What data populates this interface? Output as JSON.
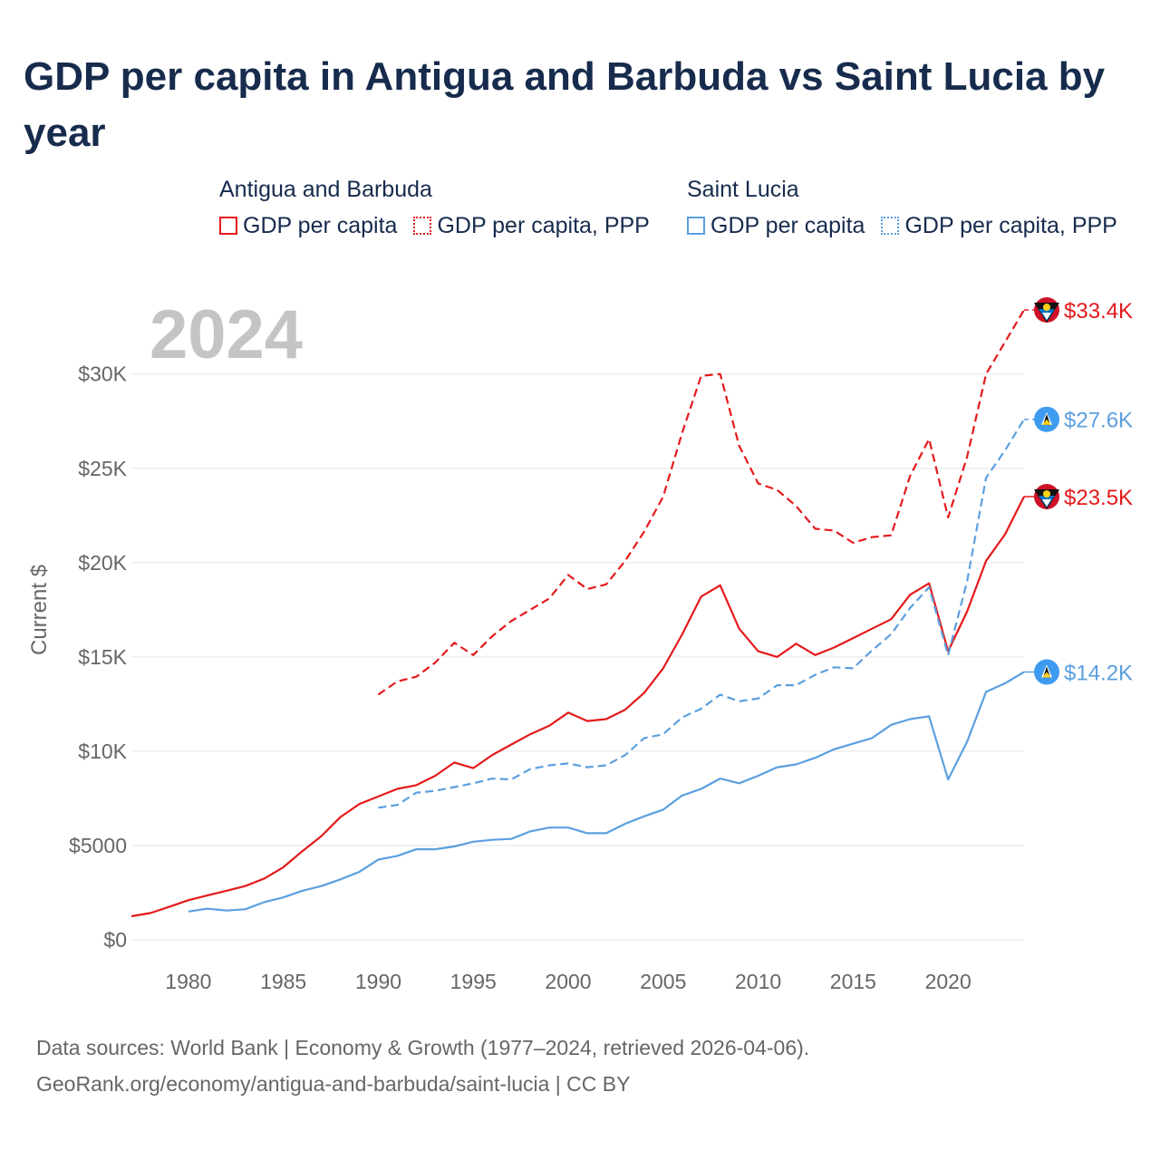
{
  "title": "GDP per capita in Antigua and Barbuda vs Saint Lucia by year",
  "legend": {
    "groups": [
      {
        "name": "Antigua and Barbuda",
        "items": [
          "GDP per capita",
          "GDP per capita, PPP"
        ]
      },
      {
        "name": "Saint Lucia",
        "items": [
          "GDP per capita",
          "GDP per capita, PPP"
        ]
      }
    ]
  },
  "source": {
    "line1": "Data sources: World Bank | Economy & Growth (1977–2024, retrieved 2026-04-06).",
    "line2": "GeoRank.org/economy/antigua-and-barbuda/saint-lucia | CC BY"
  },
  "colors": {
    "antigua": "#e41a1c",
    "saint_lucia": "#5b9fdf",
    "title": "#172b4d",
    "year_label": "#c4c4c4",
    "grid": "#e6e6e6",
    "axis_text": "#666666"
  },
  "icons": [
    "antigua-flag-icon",
    "saint-lucia-flag-icon"
  ],
  "chart_data": {
    "type": "line",
    "year_label": "2024",
    "ylabel": "Current $",
    "xlim": [
      1977,
      2024
    ],
    "ylim": [
      0,
      33400
    ],
    "xticks": [
      1980,
      1985,
      1990,
      1995,
      2000,
      2005,
      2010,
      2015,
      2020
    ],
    "xtick_labels": [
      "1980",
      "1985",
      "1990",
      "1995",
      "2000",
      "2005",
      "2010",
      "2015",
      "2020"
    ],
    "yticks": [
      0,
      5000,
      10000,
      15000,
      20000,
      25000,
      30000
    ],
    "ytick_labels": [
      "$0",
      "$5000",
      "$10K",
      "$15K",
      "$20K",
      "$25K",
      "$30K"
    ],
    "series": [
      {
        "name": "Antigua and Barbuda — GDP per capita",
        "country": "Antigua and Barbuda",
        "color": "#e41a1c",
        "dash": false,
        "end_label": "$23.5K",
        "flag": "antigua",
        "x": [
          1977,
          1978,
          1979,
          1980,
          1981,
          1982,
          1983,
          1984,
          1985,
          1986,
          1987,
          1988,
          1989,
          1990,
          1991,
          1992,
          1993,
          1994,
          1995,
          1996,
          1997,
          1998,
          1999,
          2000,
          2001,
          2002,
          2003,
          2004,
          2005,
          2006,
          2007,
          2008,
          2009,
          2010,
          2011,
          2012,
          2013,
          2014,
          2015,
          2016,
          2017,
          2018,
          2019,
          2020,
          2021,
          2022,
          2023,
          2024
        ],
        "y": [
          1250,
          1420,
          1750,
          2100,
          2350,
          2600,
          2850,
          3250,
          3850,
          4700,
          5500,
          6500,
          7200,
          7600,
          8000,
          8200,
          8700,
          9400,
          9100,
          9800,
          10350,
          10900,
          11350,
          12050,
          11600,
          11700,
          12200,
          13100,
          14400,
          16200,
          18200,
          18800,
          16500,
          15300,
          15000,
          15700,
          15100,
          15500,
          16000,
          16500,
          17000,
          18300,
          18900,
          15300,
          17400,
          20100,
          21500,
          23500
        ]
      },
      {
        "name": "Antigua and Barbuda — GDP per capita, PPP",
        "country": "Antigua and Barbuda",
        "color": "#e41a1c",
        "dash": true,
        "end_label": "$33.4K",
        "flag": "antigua",
        "x": [
          1990,
          1991,
          1992,
          1993,
          1994,
          1995,
          1996,
          1997,
          1998,
          1999,
          2000,
          2001,
          2002,
          2003,
          2004,
          2005,
          2006,
          2007,
          2008,
          2009,
          2010,
          2011,
          2012,
          2013,
          2014,
          2015,
          2016,
          2017,
          2018,
          2019,
          2020,
          2021,
          2022,
          2023,
          2024
        ],
        "y": [
          13000,
          13700,
          13950,
          14700,
          15750,
          15100,
          16100,
          16900,
          17500,
          18100,
          19350,
          18600,
          18850,
          20100,
          21650,
          23500,
          26900,
          29900,
          30000,
          26200,
          24200,
          23850,
          23000,
          21800,
          21700,
          21050,
          21350,
          21450,
          24600,
          26550,
          22400,
          25600,
          30000,
          31700,
          33400
        ]
      },
      {
        "name": "Saint Lucia — GDP per capita",
        "country": "Saint Lucia",
        "color": "#5b9fdf",
        "dash": false,
        "end_label": "$14.2K",
        "flag": "saint_lucia",
        "x": [
          1980,
          1981,
          1982,
          1983,
          1984,
          1985,
          1986,
          1987,
          1988,
          1989,
          1990,
          1991,
          1992,
          1993,
          1994,
          1995,
          1996,
          1997,
          1998,
          1999,
          2000,
          2001,
          2002,
          2003,
          2004,
          2005,
          2006,
          2007,
          2008,
          2009,
          2010,
          2011,
          2012,
          2013,
          2014,
          2015,
          2016,
          2017,
          2018,
          2019,
          2020,
          2021,
          2022,
          2023,
          2024
        ],
        "y": [
          1500,
          1650,
          1550,
          1620,
          2000,
          2250,
          2600,
          2850,
          3200,
          3600,
          4250,
          4450,
          4800,
          4800,
          4950,
          5200,
          5300,
          5350,
          5750,
          5950,
          5950,
          5650,
          5650,
          6150,
          6550,
          6900,
          7650,
          8000,
          8550,
          8300,
          8700,
          9150,
          9300,
          9650,
          10100,
          10400,
          10700,
          11400,
          11700,
          11850,
          8500,
          10500,
          13150,
          13600,
          14200
        ]
      },
      {
        "name": "Saint Lucia — GDP per capita, PPP",
        "country": "Saint Lucia",
        "color": "#5b9fdf",
        "dash": true,
        "end_label": "$27.6K",
        "flag": "saint_lucia",
        "x": [
          1990,
          1991,
          1992,
          1993,
          1994,
          1995,
          1996,
          1997,
          1998,
          1999,
          2000,
          2001,
          2002,
          2003,
          2004,
          2005,
          2006,
          2007,
          2008,
          2009,
          2010,
          2011,
          2012,
          2013,
          2014,
          2015,
          2016,
          2017,
          2018,
          2019,
          2020,
          2021,
          2022,
          2023,
          2024
        ],
        "y": [
          7000,
          7150,
          7800,
          7900,
          8100,
          8300,
          8550,
          8500,
          9050,
          9250,
          9350,
          9150,
          9250,
          9800,
          10700,
          10900,
          11800,
          12250,
          13000,
          12650,
          12800,
          13500,
          13500,
          14050,
          14450,
          14400,
          15350,
          16200,
          17600,
          18700,
          15100,
          19000,
          24500,
          25950,
          27600
        ]
      }
    ]
  }
}
